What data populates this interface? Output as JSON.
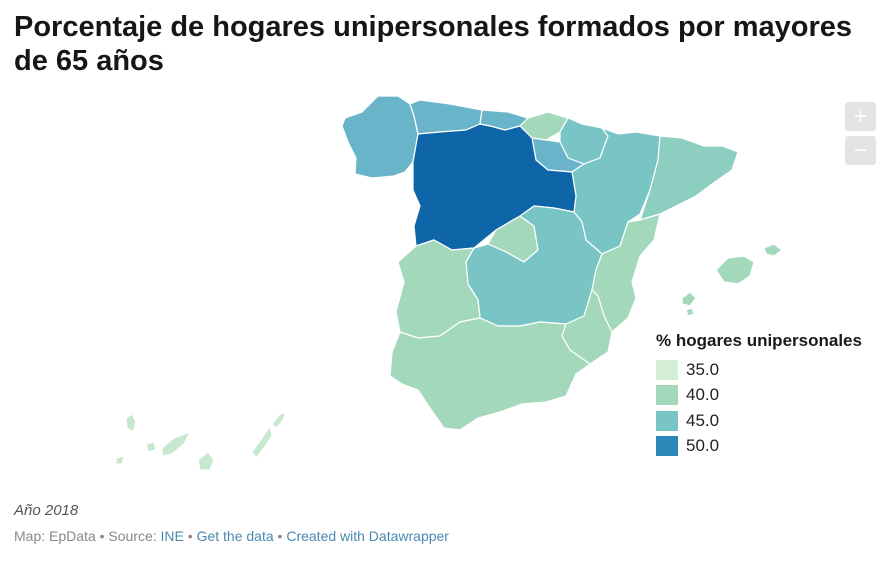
{
  "title": "Porcentaje de hogares unipersonales formados por mayores de 65 años",
  "controls": {
    "zoom_in": "+",
    "zoom_out": "−"
  },
  "legend": {
    "title": "% hogares unipersonales",
    "items": [
      {
        "label": "35.0",
        "color": "#d3eed5"
      },
      {
        "label": "40.0",
        "color": "#a3d8ba"
      },
      {
        "label": "45.0",
        "color": "#79c5c5"
      },
      {
        "label": "50.0",
        "color": "#2a87b8"
      }
    ]
  },
  "note": "Año 2018",
  "footer": {
    "map_label": "Map: EpData",
    "sep": " • ",
    "source_label": "Source: ",
    "source_link": "INE",
    "get_data": "Get the data",
    "created": "Created with Datawrapper"
  },
  "map": {
    "colors": {
      "galicia": "#6ab4c9",
      "asturias": "#6ab4c9",
      "cantabria": "#6ab4c9",
      "pais_vasco": "#a3d8ba",
      "navarra": "#79c5c5",
      "la_rioja": "#6ab4c9",
      "aragon": "#79c5c5",
      "cataluna": "#8ccfc0",
      "castilla_y_leon": "#0e66a8",
      "madrid": "#a3d8ba",
      "castilla_la_mancha": "#79c5c5",
      "extremadura": "#a3d8ba",
      "valencia": "#a3d8ba",
      "murcia": "#a3d8ba",
      "andalucia": "#a3d8ba",
      "baleares": "#a3d8ba",
      "canarias": "#c6e8cf"
    }
  }
}
